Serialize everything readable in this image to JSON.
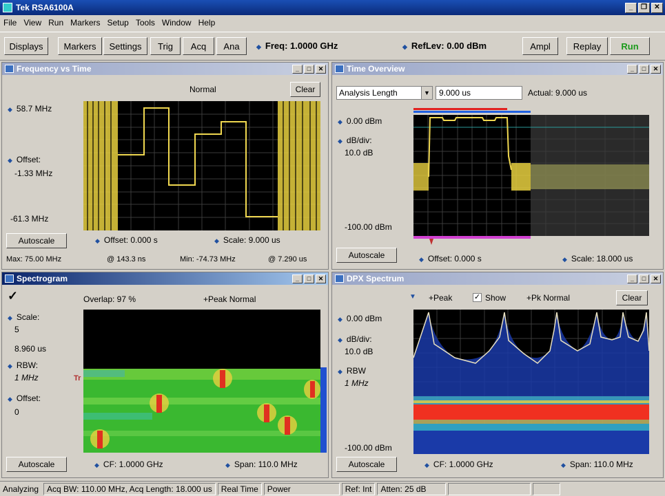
{
  "app": {
    "title": "Tek RSA6100A"
  },
  "menu": [
    "File",
    "View",
    "Run",
    "Markers",
    "Setup",
    "Tools",
    "Window",
    "Help"
  ],
  "toolbar": {
    "displays": "Displays",
    "markers": "Markers",
    "settings": "Settings",
    "trig": "Trig",
    "acq": "Acq",
    "ana": "Ana",
    "freq": "Freq: 1.0000 GHz",
    "reflev": "RefLev: 0.00 dBm",
    "ampl": "Ampl",
    "replay": "Replay",
    "run": "Run"
  },
  "fvt": {
    "title": "Frequency vs Time",
    "mode": "Normal",
    "clear": "Clear",
    "top": "58.7 MHz",
    "offset_label": "Offset:",
    "offset_val": "-1.33 MHz",
    "bottom": "-61.3 MHz",
    "autoscale": "Autoscale",
    "t_offset": "Offset: 0.000 s",
    "t_scale": "Scale: 9.000 us",
    "max": "Max: 75.00 MHz",
    "at1": "@ 143.3 ns",
    "min": "Min: -74.73 MHz",
    "at2": "@ 7.290 us"
  },
  "tov": {
    "title": "Time Overview",
    "sel": "Analysis Length",
    "len": "9.000 us",
    "actual": "Actual: 9.000 us",
    "top": "0.00 dBm",
    "dbdiv": "dB/div:",
    "dbval": "10.0 dB",
    "bottom": "-100.00 dBm",
    "autoscale": "Autoscale",
    "offset": "Offset: 0.000 s",
    "scale": "Scale: 18.000 us"
  },
  "spec": {
    "title": "Spectrogram",
    "check": "✓",
    "overlap": "Overlap: 97 %",
    "trace": "+Peak Normal",
    "scale_l": "Scale:",
    "scale_v": "5",
    "time": "8.960 us",
    "rbw_l": "RBW:",
    "rbw_v": "1 MHz",
    "off_l": "Offset:",
    "off_v": "0",
    "marker": "Tr",
    "autoscale": "Autoscale",
    "cf": "CF: 1.0000 GHz",
    "span": "Span: 110.0 MHz"
  },
  "dpx": {
    "title": "DPX Spectrum",
    "peak": "+Peak",
    "show": "Show",
    "pk": "+Pk Normal",
    "clear": "Clear",
    "top": "0.00 dBm",
    "dbdiv": "dB/div:",
    "dbval": "10.0 dB",
    "rbw_l": "RBW",
    "rbw_v": "1 MHz",
    "bottom": "-100.00 dBm",
    "autoscale": "Autoscale",
    "cf": "CF: 1.0000 GHz",
    "span": "Span: 110.0 MHz"
  },
  "status": [
    "Analyzing",
    "Acq BW: 110.00 MHz, Acq Length: 18.000 us",
    "Real Time",
    "Power",
    "Ref: Int",
    "Atten: 25 dB"
  ]
}
